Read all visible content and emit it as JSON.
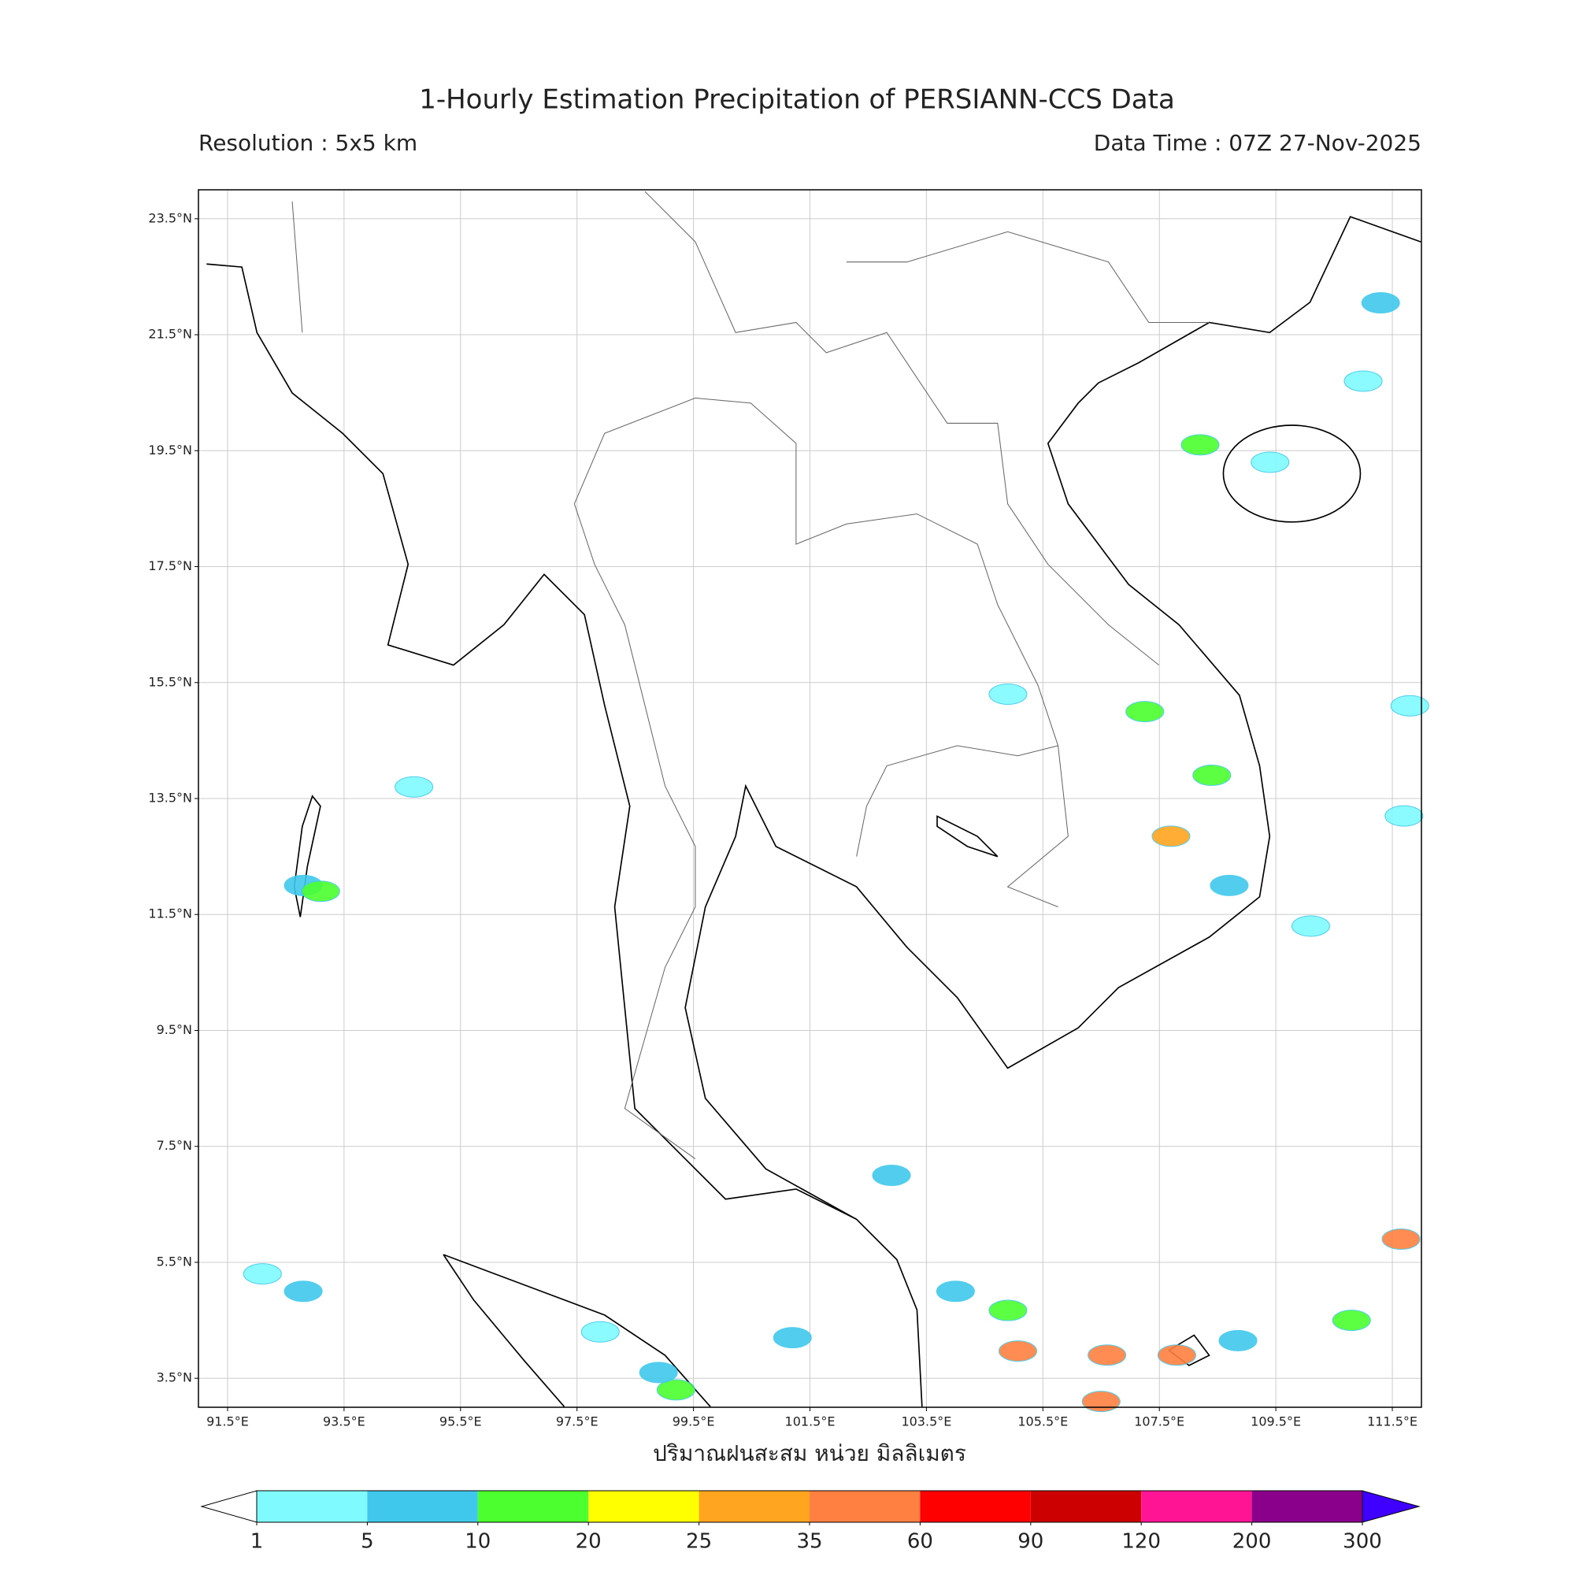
{
  "title": "1-Hourly Estimation Precipitation of PERSIANN-CCS Data",
  "resolution": "Resolution : 5x5 km",
  "data_time": "Data Time : 07Z 27-Nov-2025",
  "map": {
    "xlim": [
      91,
      112
    ],
    "ylim": [
      3,
      24
    ],
    "grid": true,
    "xticks": [
      {
        "value": 91.5,
        "label": "91.5°E"
      },
      {
        "value": 93.5,
        "label": "93.5°E"
      },
      {
        "value": 95.5,
        "label": "95.5°E"
      },
      {
        "value": 97.5,
        "label": "97.5°E"
      },
      {
        "value": 99.5,
        "label": "99.5°E"
      },
      {
        "value": 101.5,
        "label": "101.5°E"
      },
      {
        "value": 103.5,
        "label": "103.5°E"
      },
      {
        "value": 105.5,
        "label": "105.5°E"
      },
      {
        "value": 107.5,
        "label": "107.5°E"
      },
      {
        "value": 109.5,
        "label": "109.5°E"
      },
      {
        "value": 111.5,
        "label": "111.5°E"
      }
    ],
    "yticks": [
      {
        "value": 3.5,
        "label": "3.5°N"
      },
      {
        "value": 5.5,
        "label": "5.5°N"
      },
      {
        "value": 7.5,
        "label": "7.5°N"
      },
      {
        "value": 9.5,
        "label": "9.5°N"
      },
      {
        "value": 11.5,
        "label": "11.5°N"
      },
      {
        "value": 13.5,
        "label": "13.5°N"
      },
      {
        "value": 15.5,
        "label": "15.5°N"
      },
      {
        "value": 17.5,
        "label": "17.5°N"
      },
      {
        "value": 19.5,
        "label": "19.5°N"
      },
      {
        "value": 21.5,
        "label": "21.5°N"
      },
      {
        "value": 23.5,
        "label": "23.5°N"
      }
    ],
    "rain": [
      {
        "lon": 105.07,
        "lat": 3.97,
        "mm": 35
      },
      {
        "lon": 106.6,
        "lat": 3.9,
        "mm": 35
      },
      {
        "lon": 104.9,
        "lat": 4.67,
        "mm": 10
      },
      {
        "lon": 104.0,
        "lat": 5.0,
        "mm": 5
      },
      {
        "lon": 106.5,
        "lat": 3.1,
        "mm": 35
      },
      {
        "lon": 107.8,
        "lat": 3.9,
        "mm": 35
      },
      {
        "lon": 111.65,
        "lat": 5.9,
        "mm": 35
      },
      {
        "lon": 110.8,
        "lat": 4.5,
        "mm": 10
      },
      {
        "lon": 99.2,
        "lat": 3.3,
        "mm": 10
      },
      {
        "lon": 98.9,
        "lat": 3.6,
        "mm": 5
      },
      {
        "lon": 97.9,
        "lat": 4.3,
        "mm": 1
      },
      {
        "lon": 92.8,
        "lat": 5.0,
        "mm": 5
      },
      {
        "lon": 92.1,
        "lat": 5.3,
        "mm": 1
      },
      {
        "lon": 92.8,
        "lat": 12.0,
        "mm": 5
      },
      {
        "lon": 93.1,
        "lat": 11.9,
        "mm": 10
      },
      {
        "lon": 94.7,
        "lat": 13.7,
        "mm": 1
      },
      {
        "lon": 107.7,
        "lat": 12.85,
        "mm": 25
      },
      {
        "lon": 108.7,
        "lat": 12.0,
        "mm": 5
      },
      {
        "lon": 110.1,
        "lat": 11.3,
        "mm": 1
      },
      {
        "lon": 108.2,
        "lat": 19.6,
        "mm": 10
      },
      {
        "lon": 109.4,
        "lat": 19.3,
        "mm": 1
      },
      {
        "lon": 111.3,
        "lat": 22.05,
        "mm": 5
      },
      {
        "lon": 111.0,
        "lat": 20.7,
        "mm": 1
      },
      {
        "lon": 107.25,
        "lat": 15.0,
        "mm": 10
      },
      {
        "lon": 108.4,
        "lat": 13.9,
        "mm": 10
      },
      {
        "lon": 104.9,
        "lat": 15.3,
        "mm": 1
      },
      {
        "lon": 102.9,
        "lat": 7.0,
        "mm": 5
      },
      {
        "lon": 101.2,
        "lat": 4.2,
        "mm": 5
      },
      {
        "lon": 108.85,
        "lat": 4.15,
        "mm": 5
      },
      {
        "lon": 111.8,
        "lat": 15.1,
        "mm": 1
      },
      {
        "lon": 111.7,
        "lat": 13.2,
        "mm": 1
      }
    ]
  },
  "colorbar": {
    "label": "ปริมาณฝนสะสม หน่วย มิลลิเมตร",
    "levels": [
      1,
      5,
      10,
      20,
      25,
      35,
      60,
      90,
      120,
      200,
      300
    ],
    "colors": [
      "#7ffbff",
      "#40c8ec",
      "#4cff2f",
      "#ffff00",
      "#ffa520",
      "#ff8040",
      "#ff0000",
      "#cc0000",
      "#ff1493",
      "#8b008b"
    ],
    "under_color": "#ffffff",
    "over_color": "#3f00ff"
  }
}
